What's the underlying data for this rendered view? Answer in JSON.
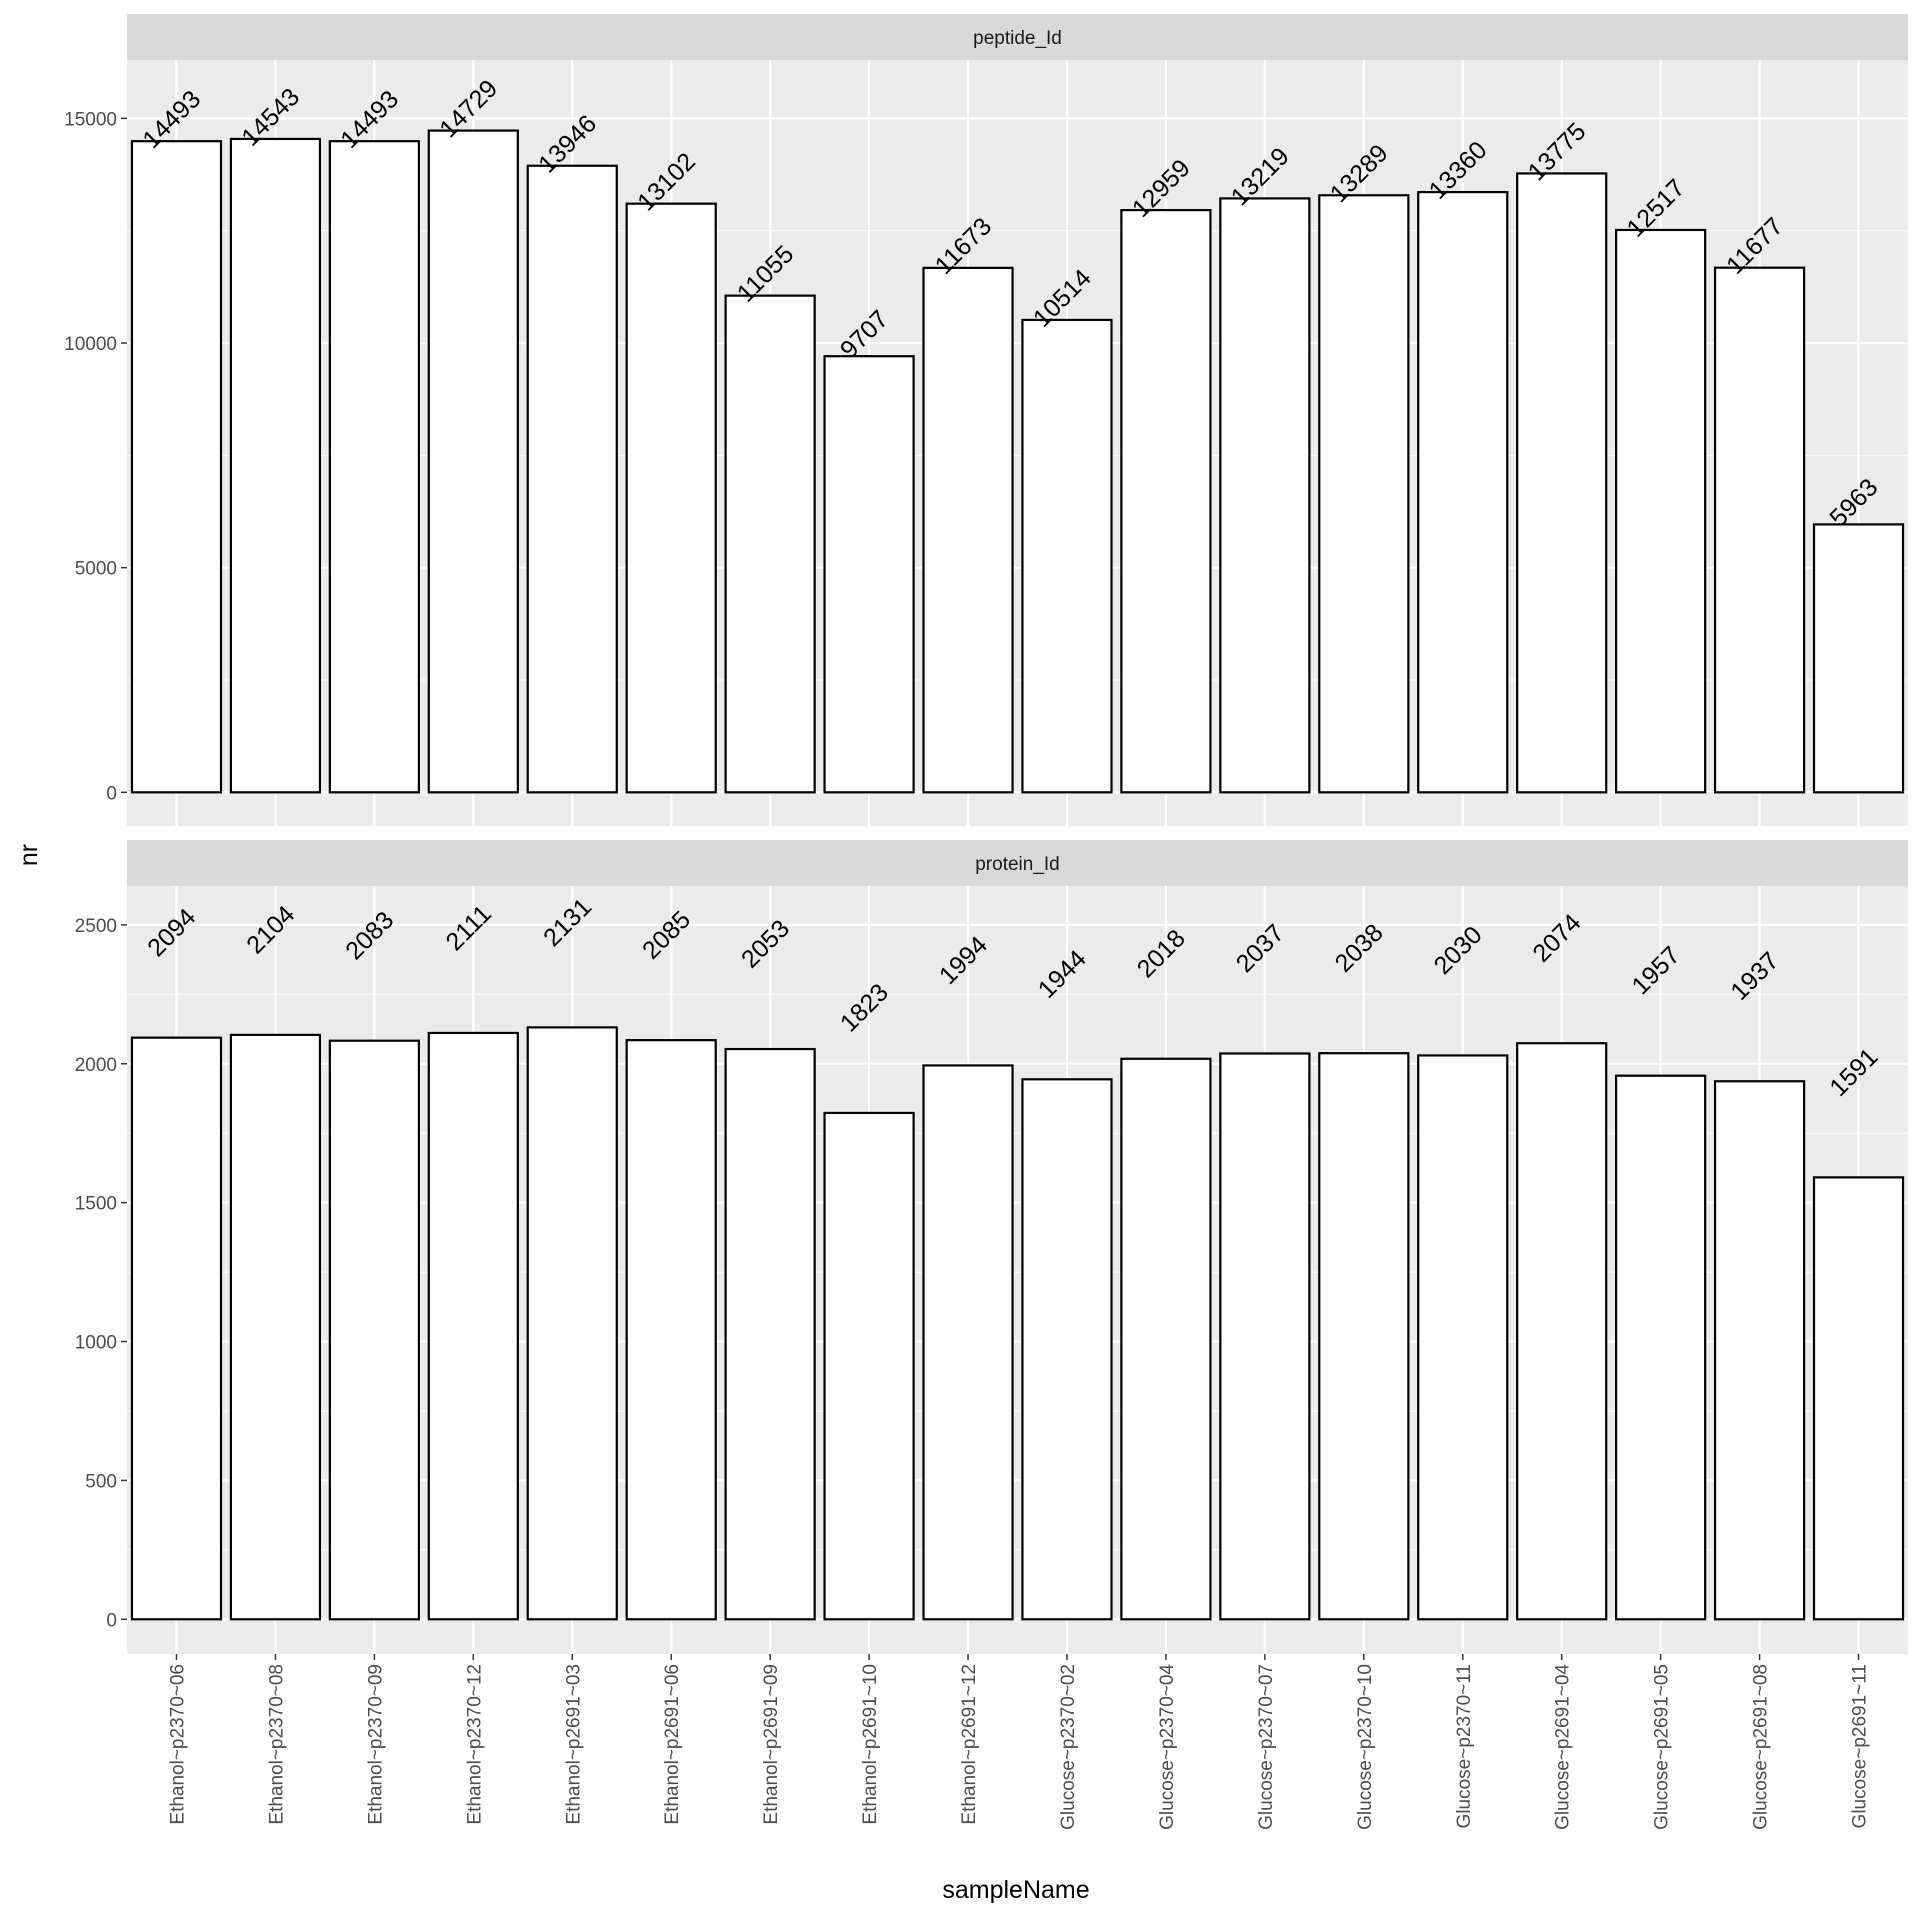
{
  "chart_data": {
    "type": "bar",
    "xlabel": "sampleName",
    "ylabel": "nr",
    "categories": [
      "Ethanol~p2370~06",
      "Ethanol~p2370~08",
      "Ethanol~p2370~09",
      "Ethanol~p2370~12",
      "Ethanol~p2691~03",
      "Ethanol~p2691~06",
      "Ethanol~p2691~09",
      "Ethanol~p2691~10",
      "Ethanol~p2691~12",
      "Glucose~p2370~02",
      "Glucose~p2370~04",
      "Glucose~p2370~07",
      "Glucose~p2370~10",
      "Glucose~p2370~11",
      "Glucose~p2691~04",
      "Glucose~p2691~05",
      "Glucose~p2691~08",
      "Glucose~p2691~11"
    ],
    "panels": [
      {
        "strip": "peptide_Id",
        "values": [
          14493,
          14543,
          14493,
          14729,
          13946,
          13102,
          11055,
          9707,
          11673,
          10514,
          12959,
          13219,
          13289,
          13360,
          13775,
          12517,
          11677,
          5963
        ],
        "ylim": [
          -750,
          16300
        ],
        "yticks": [
          0,
          5000,
          10000,
          15000
        ],
        "ytick_labels": [
          "0",
          "5000",
          "10000",
          "15000"
        ],
        "label_offset": 0
      },
      {
        "strip": "protein_Id",
        "values": [
          2094,
          2104,
          2083,
          2111,
          2131,
          2085,
          2053,
          1823,
          1994,
          1944,
          2018,
          2037,
          2038,
          2030,
          2074,
          1957,
          1937,
          1591
        ],
        "ylim": [
          -125,
          2640
        ],
        "yticks": [
          0,
          500,
          1000,
          1500,
          2000,
          2500
        ],
        "ytick_labels": [
          "0",
          "500",
          "1000",
          "1500",
          "2000",
          "2500"
        ],
        "label_offset": 300
      }
    ],
    "grid": true,
    "legend": "none",
    "colors": {
      "panel_background": "#ebebeb",
      "strip_background": "#d9d9d9",
      "gridline": "#ffffff",
      "bar_fill": "#ffffff",
      "bar_outline": "#000000"
    }
  }
}
